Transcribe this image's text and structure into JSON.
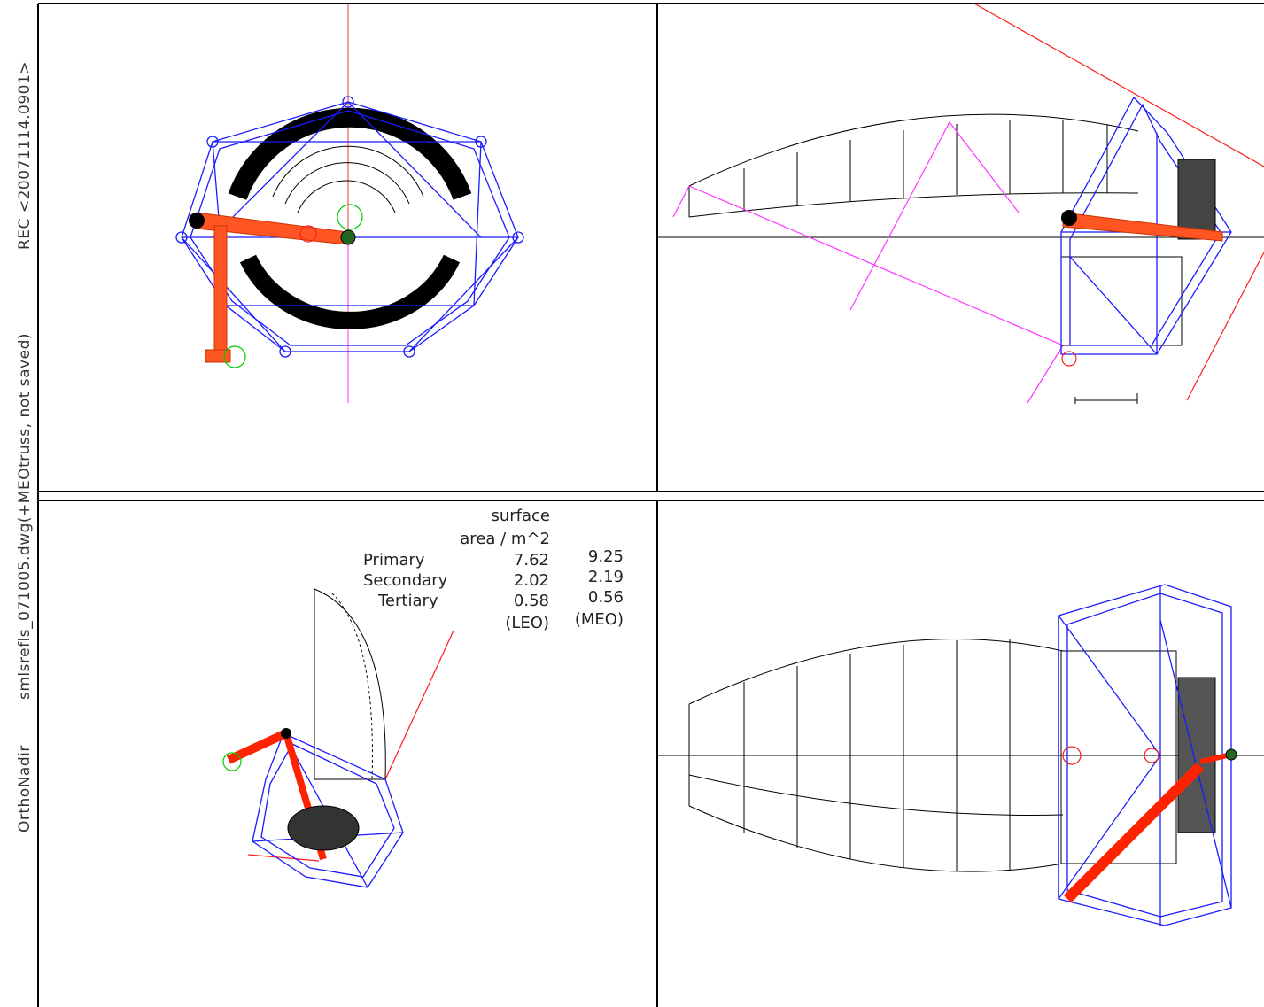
{
  "side_label": {
    "view": "OrthoNadir",
    "file": "smlsrefls_071005.dwg(+MEOtruss, not saved)",
    "record": "REC <20071114.0901>"
  },
  "table": {
    "header": [
      "surface",
      "area / m^2"
    ],
    "rows": [
      [
        "Primary",
        7.62,
        9.25
      ],
      [
        "Secondary",
        2.02,
        2.19
      ],
      [
        "Tertiary",
        0.58,
        0.56
      ]
    ],
    "footer": [
      "(LEO)",
      "(MEO)"
    ]
  }
}
